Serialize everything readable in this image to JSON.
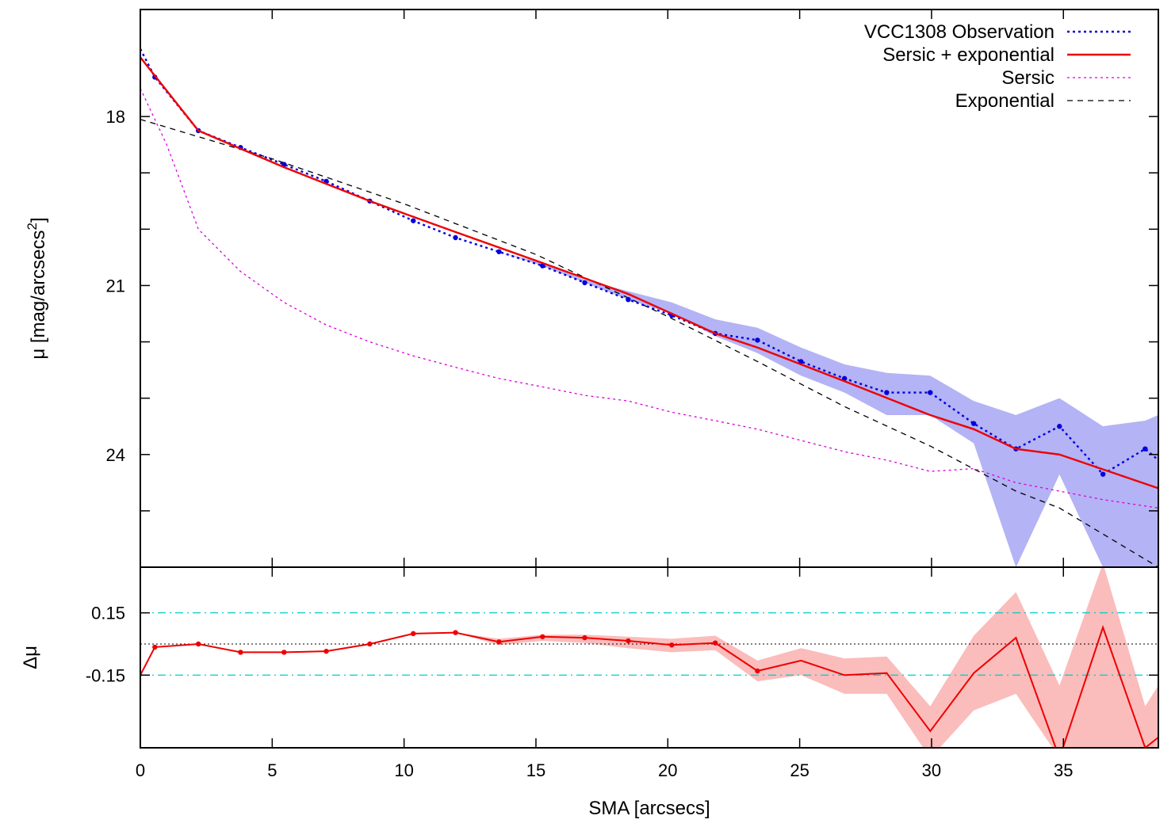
{
  "chart_data": [
    {
      "type": "line",
      "panel": "top",
      "xlim": [
        0,
        38.6
      ],
      "ylim": [
        26,
        16.1
      ],
      "y_reversed": true,
      "xticks": [
        0,
        5,
        10,
        15,
        20,
        25,
        30,
        35
      ],
      "yticks_labeled": [
        18,
        21,
        24
      ],
      "yticks_minor": [
        19,
        20,
        22,
        23,
        25
      ],
      "ylabel": "μ [mag/arcsecs²]",
      "ylabel_main": "μ [mag/arcsecs",
      "ylabel_sup": "2",
      "ylabel_close": "]",
      "legend_position": "top-right",
      "series": [
        {
          "name": "VCC1308 Observation",
          "style": "dotted",
          "color": "#0000dd",
          "markers": true,
          "x": [
            0,
            0.55,
            2.2,
            3.8,
            5.45,
            7.05,
            8.7,
            10.35,
            11.95,
            13.6,
            15.25,
            16.85,
            18.5,
            20.15,
            21.8,
            23.4,
            25.05,
            26.7,
            28.3,
            29.95,
            31.6,
            33.2,
            34.85,
            36.5,
            38.1,
            38.6
          ],
          "y": [
            16.8,
            17.3,
            18.25,
            18.55,
            18.85,
            19.15,
            19.5,
            19.85,
            20.15,
            20.4,
            20.65,
            20.95,
            21.25,
            21.53,
            21.85,
            21.97,
            22.35,
            22.65,
            22.9,
            22.9,
            23.45,
            23.9,
            23.5,
            24.35,
            23.9,
            24.1
          ],
          "err_lo": [
            16.8,
            17.3,
            18.25,
            18.55,
            18.85,
            19.15,
            19.5,
            19.85,
            20.15,
            20.4,
            20.65,
            20.95,
            21.25,
            21.53,
            21.85,
            21.97,
            22.35,
            22.65,
            22.9,
            22.9,
            23.45,
            26.0,
            24.35,
            26.0,
            26.0,
            26.0
          ],
          "err_hi": [
            16.8,
            17.3,
            18.25,
            18.55,
            18.85,
            19.15,
            19.5,
            19.85,
            20.15,
            20.4,
            20.65,
            20.95,
            21.25,
            21.53,
            21.85,
            21.97,
            22.35,
            22.65,
            22.9,
            22.9,
            23.45,
            23.3,
            23.0,
            23.5,
            23.4,
            23.3
          ],
          "err_outer_lo": [
            16.8,
            17.3,
            18.25,
            18.55,
            18.85,
            19.15,
            19.5,
            19.85,
            20.15,
            20.4,
            20.65,
            20.95,
            21.25,
            21.5,
            21.9,
            22.2,
            22.6,
            22.9,
            23.3,
            23.3,
            23.8,
            26.0,
            24.35,
            26.0,
            26.0,
            26.0
          ],
          "err_outer_hi": [
            16.8,
            17.3,
            18.25,
            18.55,
            18.85,
            19.15,
            19.5,
            19.85,
            20.15,
            20.4,
            20.6,
            20.9,
            21.1,
            21.3,
            21.6,
            21.75,
            22.1,
            22.4,
            22.55,
            22.6,
            23.05,
            23.3,
            23.0,
            23.5,
            23.4,
            23.3
          ]
        },
        {
          "name": "Sersic + exponential",
          "style": "solid",
          "color": "#ee0000",
          "x": [
            0,
            2.2,
            5.45,
            8.7,
            11.95,
            15.25,
            18.5,
            21.8,
            23.4,
            26.7,
            29.95,
            31.6,
            33.2,
            34.85,
            38.6
          ],
          "y": [
            16.95,
            18.25,
            18.9,
            19.5,
            20.05,
            20.6,
            21.15,
            21.85,
            22.1,
            22.7,
            23.3,
            23.55,
            23.9,
            24.0,
            24.6
          ]
        },
        {
          "name": "Sersic",
          "style": "dotted",
          "color": "#dd00dd",
          "x": [
            0,
            1.0,
            2.2,
            3.8,
            5.45,
            7.05,
            8.7,
            10.35,
            11.95,
            13.6,
            15.25,
            16.85,
            18.5,
            20.15,
            21.8,
            23.4,
            25.05,
            26.7,
            28.3,
            29.95,
            31.6,
            33.2,
            34.85,
            36.5,
            38.6
          ],
          "y": [
            17.5,
            18.5,
            20.0,
            20.75,
            21.3,
            21.7,
            22.0,
            22.25,
            22.45,
            22.65,
            22.8,
            22.95,
            23.05,
            23.25,
            23.4,
            23.55,
            23.75,
            23.95,
            24.1,
            24.3,
            24.25,
            24.5,
            24.65,
            24.8,
            24.95
          ]
        },
        {
          "name": "Exponential",
          "style": "dashed",
          "color": "#000000",
          "x": [
            0,
            5,
            10,
            15,
            20,
            23.4,
            26.7,
            29.95,
            33.2,
            34.85,
            38.6
          ],
          "y": [
            18.05,
            18.75,
            19.55,
            20.45,
            21.55,
            22.35,
            23.15,
            23.85,
            24.65,
            24.95,
            26.0
          ]
        }
      ]
    },
    {
      "type": "line",
      "panel": "bottom",
      "xlim": [
        0,
        38.6
      ],
      "ylim": [
        -0.5,
        0.37
      ],
      "xticks": [
        0,
        5,
        10,
        15,
        20,
        25,
        30,
        35
      ],
      "yticks": [
        0.15,
        -0.15
      ],
      "ytick_labels": [
        "0.15",
        "-0.15"
      ],
      "xlabel": "SMA [arcsecs]",
      "ylabel": "Δμ",
      "reference_lines": [
        {
          "y": 0.15,
          "style": "dash-dot",
          "color": "#00cccc"
        },
        {
          "y": 0.0,
          "style": "dotted",
          "color": "#000000"
        },
        {
          "y": -0.15,
          "style": "dash-dot",
          "color": "#00cccc"
        }
      ],
      "series": [
        {
          "style": "solid",
          "color": "#ee0000",
          "markers": true,
          "x": [
            0,
            0.55,
            2.2,
            3.8,
            5.45,
            7.05,
            8.7,
            10.35,
            11.95,
            13.6,
            15.25,
            16.85,
            18.5,
            20.15,
            21.8,
            23.4,
            25.05,
            26.7,
            28.3,
            29.95,
            31.6,
            33.2,
            34.85,
            36.5,
            38.1,
            38.6
          ],
          "y": [
            -0.15,
            -0.015,
            0.0,
            -0.04,
            -0.04,
            -0.035,
            0.0,
            0.05,
            0.055,
            0.01,
            0.035,
            0.03,
            0.015,
            -0.005,
            0.005,
            -0.13,
            -0.08,
            -0.15,
            -0.14,
            -0.42,
            -0.14,
            0.03,
            -0.55,
            0.08,
            -0.5,
            -0.45
          ],
          "band_lo": [
            -0.15,
            -0.015,
            0.0,
            -0.04,
            -0.04,
            -0.035,
            0.0,
            0.05,
            0.055,
            -0.005,
            0.015,
            0.005,
            -0.02,
            -0.04,
            -0.03,
            -0.18,
            -0.15,
            -0.24,
            -0.24,
            -0.55,
            -0.32,
            -0.24,
            -0.55,
            -0.55,
            -0.55,
            -0.55
          ],
          "band_hi": [
            -0.15,
            -0.015,
            0.0,
            -0.04,
            -0.04,
            -0.035,
            0.0,
            0.05,
            0.055,
            0.025,
            0.045,
            0.045,
            0.035,
            0.025,
            0.04,
            -0.08,
            -0.02,
            -0.07,
            -0.06,
            -0.3,
            0.04,
            0.25,
            -0.2,
            0.39,
            -0.3,
            -0.2
          ]
        }
      ]
    }
  ]
}
